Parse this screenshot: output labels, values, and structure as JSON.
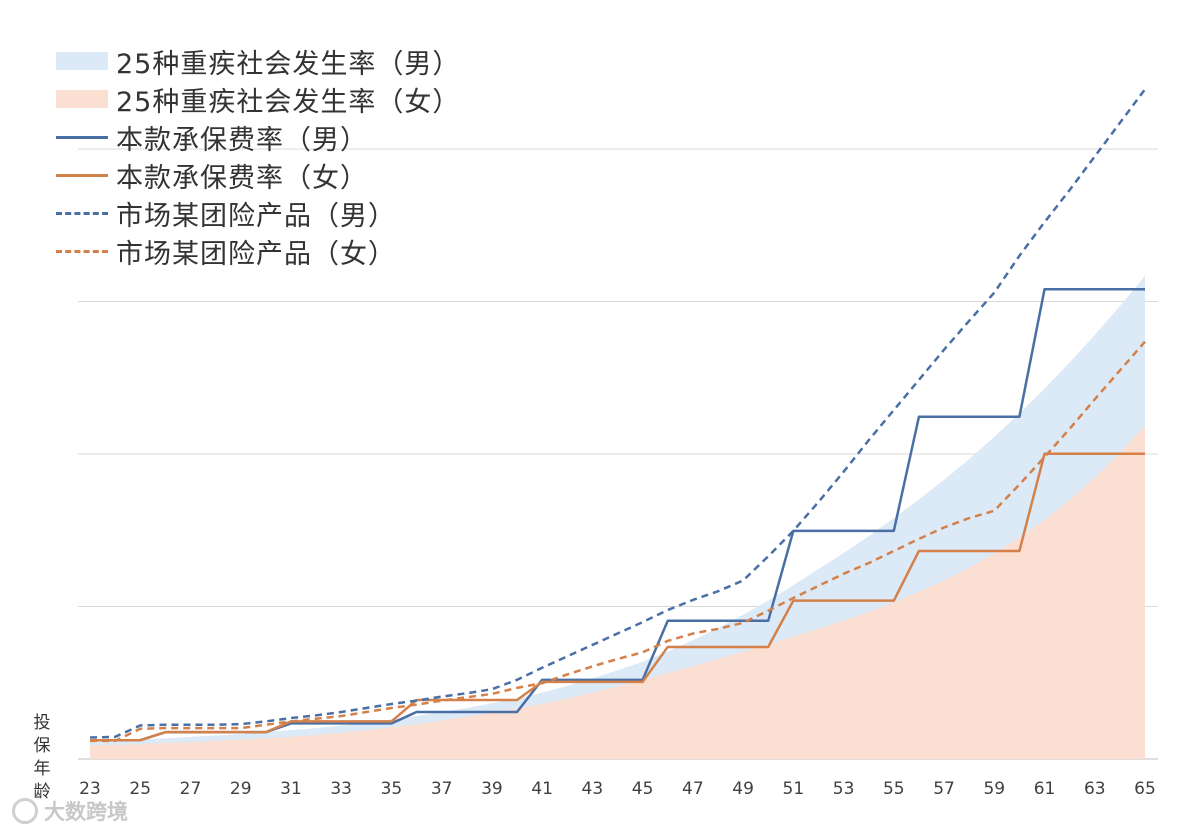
{
  "chart_data": {
    "type": "line",
    "x_label": "投保年龄",
    "x": [
      23,
      24,
      25,
      26,
      27,
      28,
      29,
      30,
      31,
      32,
      33,
      34,
      35,
      36,
      37,
      38,
      39,
      40,
      41,
      42,
      43,
      44,
      45,
      46,
      47,
      48,
      49,
      50,
      51,
      52,
      53,
      54,
      55,
      56,
      57,
      58,
      59,
      60,
      61,
      62,
      63,
      64,
      65
    ],
    "x_ticks": [
      23,
      25,
      27,
      29,
      31,
      33,
      35,
      37,
      39,
      41,
      43,
      45,
      47,
      49,
      51,
      53,
      55,
      57,
      59,
      61,
      63,
      65
    ],
    "y_axis_labels": false,
    "ylim": [
      0,
      100
    ],
    "grid": "horizontal",
    "legend_position": "top-left",
    "series": [
      {
        "name": "25种重疾社会发生率（男）",
        "style": "area",
        "color": "#dce9f6",
        "values": [
          2.5,
          2.7,
          2.9,
          3.1,
          3.3,
          3.5,
          3.7,
          4.0,
          4.3,
          4.6,
          5.0,
          5.4,
          5.9,
          6.4,
          7.0,
          7.6,
          8.3,
          9.0,
          9.9,
          10.9,
          12.0,
          13.2,
          14.5,
          16.0,
          17.7,
          19.5,
          21.5,
          23.6,
          25.9,
          28.3,
          30.7,
          33.2,
          35.9,
          38.7,
          41.6,
          44.7,
          48.0,
          51.5,
          55.2,
          59.1,
          63.2,
          67.5,
          72.0
        ]
      },
      {
        "name": "25种重疾社会发生率（女）",
        "style": "area",
        "color": "#fbdfd2",
        "values": [
          2.0,
          2.1,
          2.2,
          2.4,
          2.5,
          2.7,
          2.9,
          3.1,
          3.3,
          3.6,
          3.9,
          4.3,
          4.7,
          5.2,
          5.7,
          6.3,
          6.9,
          7.5,
          8.2,
          9.0,
          9.9,
          10.8,
          11.8,
          12.8,
          13.8,
          14.9,
          16.0,
          17.1,
          18.2,
          19.4,
          20.6,
          21.9,
          23.3,
          24.9,
          26.6,
          28.5,
          30.6,
          33.0,
          35.6,
          38.6,
          41.9,
          45.6,
          49.7
        ]
      },
      {
        "name": "本款承保费率（男）",
        "style": "step",
        "color": "#4a6fa5",
        "values": [
          2.8,
          2.8,
          2.8,
          4.0,
          4.0,
          4.0,
          4.0,
          4.0,
          5.3,
          5.3,
          5.3,
          5.3,
          5.3,
          7.0,
          7.0,
          7.0,
          7.0,
          7.0,
          11.8,
          11.8,
          11.8,
          11.8,
          11.8,
          20.6,
          20.6,
          20.6,
          20.6,
          20.6,
          34.0,
          34.0,
          34.0,
          34.0,
          34.0,
          51.0,
          51.0,
          51.0,
          51.0,
          51.0,
          70.0,
          70.0,
          70.0,
          70.0,
          70.0
        ]
      },
      {
        "name": "本款承保费率（女）",
        "style": "step",
        "color": "#d4804a",
        "values": [
          2.8,
          2.8,
          2.8,
          4.0,
          4.0,
          4.0,
          4.0,
          4.0,
          5.6,
          5.6,
          5.6,
          5.6,
          5.6,
          8.8,
          8.8,
          8.8,
          8.8,
          8.8,
          11.5,
          11.5,
          11.5,
          11.5,
          11.5,
          16.7,
          16.7,
          16.7,
          16.7,
          16.7,
          23.6,
          23.6,
          23.6,
          23.6,
          23.6,
          31.0,
          31.0,
          31.0,
          31.0,
          31.0,
          45.5,
          45.5,
          45.5,
          45.5,
          45.5
        ]
      },
      {
        "name": "市场某团险产品（男）",
        "style": "dashed",
        "color": "#4a6fa5",
        "values": [
          3.2,
          3.3,
          5.0,
          5.1,
          5.1,
          5.1,
          5.2,
          5.6,
          6.1,
          6.5,
          7.0,
          7.6,
          8.2,
          8.7,
          9.3,
          9.8,
          10.4,
          11.8,
          13.6,
          15.3,
          17.0,
          18.7,
          20.4,
          22.2,
          23.7,
          25.0,
          26.6,
          30.2,
          34.0,
          38.3,
          42.8,
          47.5,
          52.0,
          56.5,
          61.0,
          65.3,
          69.5,
          75.0,
          80.0,
          84.8,
          89.8,
          94.8,
          99.8
        ]
      },
      {
        "name": "市场某团险产品（女）",
        "style": "dashed",
        "color": "#d4804a",
        "values": [
          2.7,
          2.7,
          4.5,
          4.6,
          4.6,
          4.6,
          4.6,
          5.1,
          5.6,
          6.0,
          6.4,
          7.0,
          7.6,
          8.1,
          8.7,
          9.2,
          9.7,
          10.6,
          11.3,
          12.6,
          13.8,
          14.9,
          15.9,
          17.6,
          18.7,
          19.4,
          20.3,
          22.1,
          24.0,
          25.8,
          27.6,
          29.2,
          31.0,
          32.8,
          34.5,
          35.9,
          37.0,
          40.9,
          45.0,
          49.2,
          53.6,
          57.9,
          62.2
        ]
      }
    ]
  },
  "legend": [
    {
      "label": "25种重疾社会发生率（男）",
      "kind": "area",
      "color": "#dce9f6"
    },
    {
      "label": "25种重疾社会发生率（女）",
      "kind": "area",
      "color": "#fbdfd2"
    },
    {
      "label": "本款承保费率（男）",
      "kind": "solid",
      "color": "#4a6fa5"
    },
    {
      "label": "本款承保费率（女）",
      "kind": "solid",
      "color": "#d4804a"
    },
    {
      "label": "市场某团险产品（男）",
      "kind": "dashed",
      "color": "#4a6fa5"
    },
    {
      "label": "市场某团险产品（女）",
      "kind": "dashed",
      "color": "#d4804a"
    }
  ],
  "axis_title": "投保年龄",
  "watermark": {
    "text": "大数跨境",
    "icon": "logo-icon"
  }
}
